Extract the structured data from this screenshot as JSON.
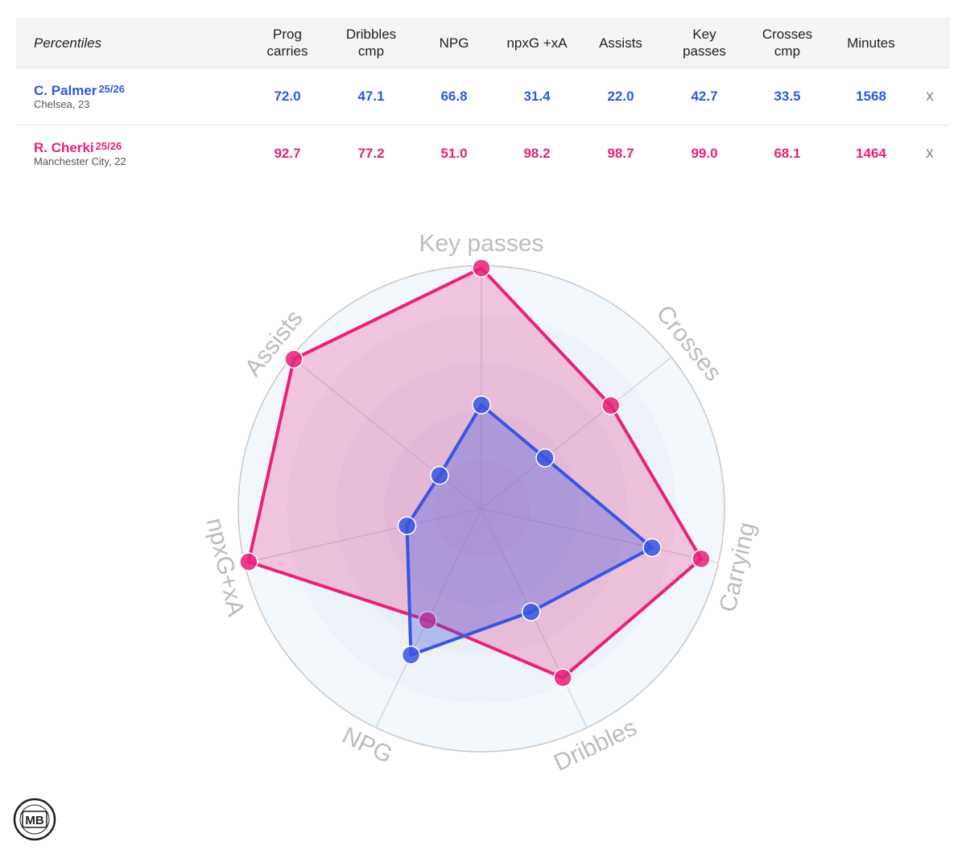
{
  "table": {
    "corner_label": "Percentiles",
    "columns": [
      {
        "line1": "Prog",
        "line2": "carries"
      },
      {
        "line1": "Dribbles",
        "line2": "cmp"
      },
      {
        "line1": "NPG",
        "line2": ""
      },
      {
        "line1": "npxG +xA",
        "line2": ""
      },
      {
        "line1": "Assists",
        "line2": ""
      },
      {
        "line1": "Key",
        "line2": "passes"
      },
      {
        "line1": "Crosses",
        "line2": "cmp"
      },
      {
        "line1": "Minutes",
        "line2": ""
      }
    ],
    "players": [
      {
        "name": "C. Palmer",
        "season": "25/26",
        "sub": "Chelsea, 23",
        "color": "#2f57e4",
        "values": [
          "72.0",
          "47.1",
          "66.8",
          "31.4",
          "22.0",
          "42.7",
          "33.5",
          "1568"
        ],
        "remove": "x"
      },
      {
        "name": "R. Cherki",
        "season": "25/26",
        "sub": "Manchester City, 22",
        "color": "#e8217a",
        "values": [
          "92.7",
          "77.2",
          "51.0",
          "98.2",
          "98.7",
          "99.0",
          "68.1",
          "1464"
        ],
        "remove": "x"
      }
    ]
  },
  "chart_data": {
    "type": "radar",
    "axes": [
      "Key passes",
      "Crosses",
      "Carrying",
      "Dribbles",
      "NPG",
      "npxG+xA",
      "Assists"
    ],
    "range": [
      0,
      100
    ],
    "series": [
      {
        "name": "R. Cherki",
        "color": "#e8217a",
        "values": [
          99.0,
          68.1,
          92.7,
          77.2,
          51.0,
          98.2,
          98.7
        ]
      },
      {
        "name": "C. Palmer",
        "color": "#3a55e0",
        "values": [
          42.7,
          33.5,
          72.0,
          47.1,
          66.8,
          31.4,
          22.0
        ]
      }
    ]
  },
  "logo": {
    "text": "MB"
  }
}
